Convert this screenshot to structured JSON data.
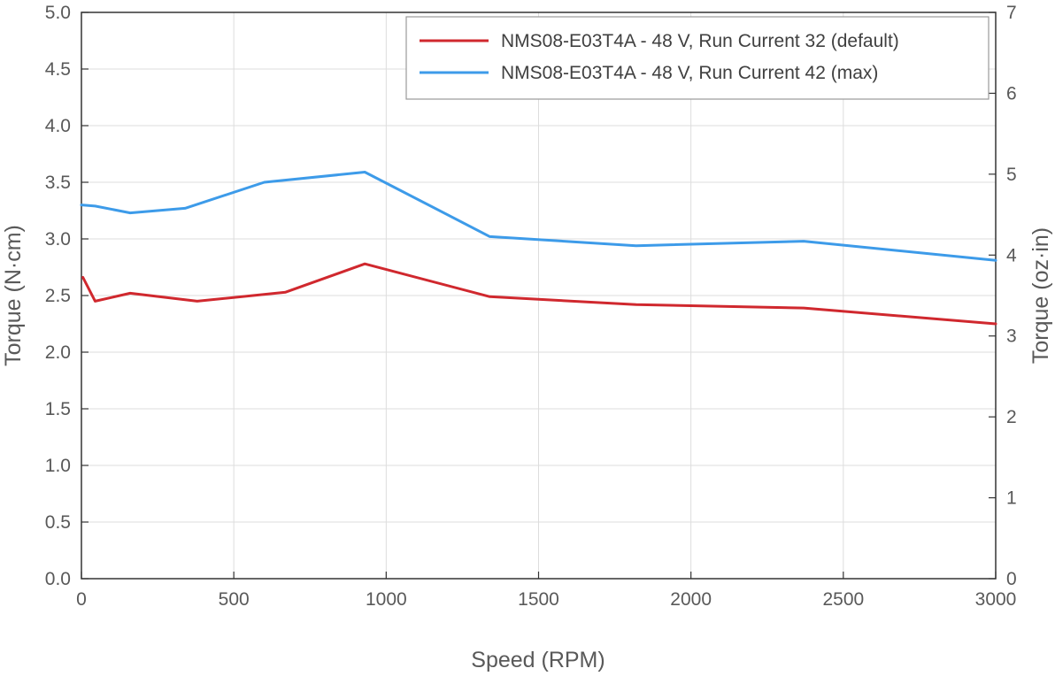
{
  "chart_data": {
    "type": "line",
    "title": "",
    "xlabel": "Speed (RPM)",
    "ylabel": "Torque (N·cm)",
    "y2label": "Torque (oz·in)",
    "xlim": [
      0,
      3000
    ],
    "ylim": [
      0,
      5.0
    ],
    "y2lim": [
      0,
      7
    ],
    "x_ticks": [
      "0",
      "500",
      "1000",
      "1500",
      "2000",
      "2500",
      "3000"
    ],
    "y_ticks": [
      "0.0",
      "0.5",
      "1.0",
      "1.5",
      "2.0",
      "2.5",
      "3.0",
      "3.5",
      "4.0",
      "4.5",
      "5.0"
    ],
    "y2_ticks": [
      "0",
      "1",
      "2",
      "3",
      "4",
      "5",
      "6",
      "7"
    ],
    "grid": true,
    "legend_position": "top-right",
    "series": [
      {
        "name": "NMS08-E03T4A - 48 V, Run Current 32 (default)",
        "color": "#d0282e",
        "x": [
          5,
          45,
          160,
          380,
          670,
          930,
          1340,
          1820,
          2370,
          3000
        ],
        "y": [
          2.66,
          2.45,
          2.52,
          2.45,
          2.53,
          2.78,
          2.49,
          2.42,
          2.39,
          2.25
        ]
      },
      {
        "name": "NMS08-E03T4A - 48 V, Run Current 42 (max)",
        "color": "#3d9be9",
        "x": [
          0,
          45,
          160,
          340,
          600,
          930,
          1340,
          1820,
          2370,
          3000
        ],
        "y": [
          3.3,
          3.29,
          3.23,
          3.27,
          3.5,
          3.59,
          3.02,
          2.94,
          2.98,
          2.81
        ]
      }
    ]
  }
}
